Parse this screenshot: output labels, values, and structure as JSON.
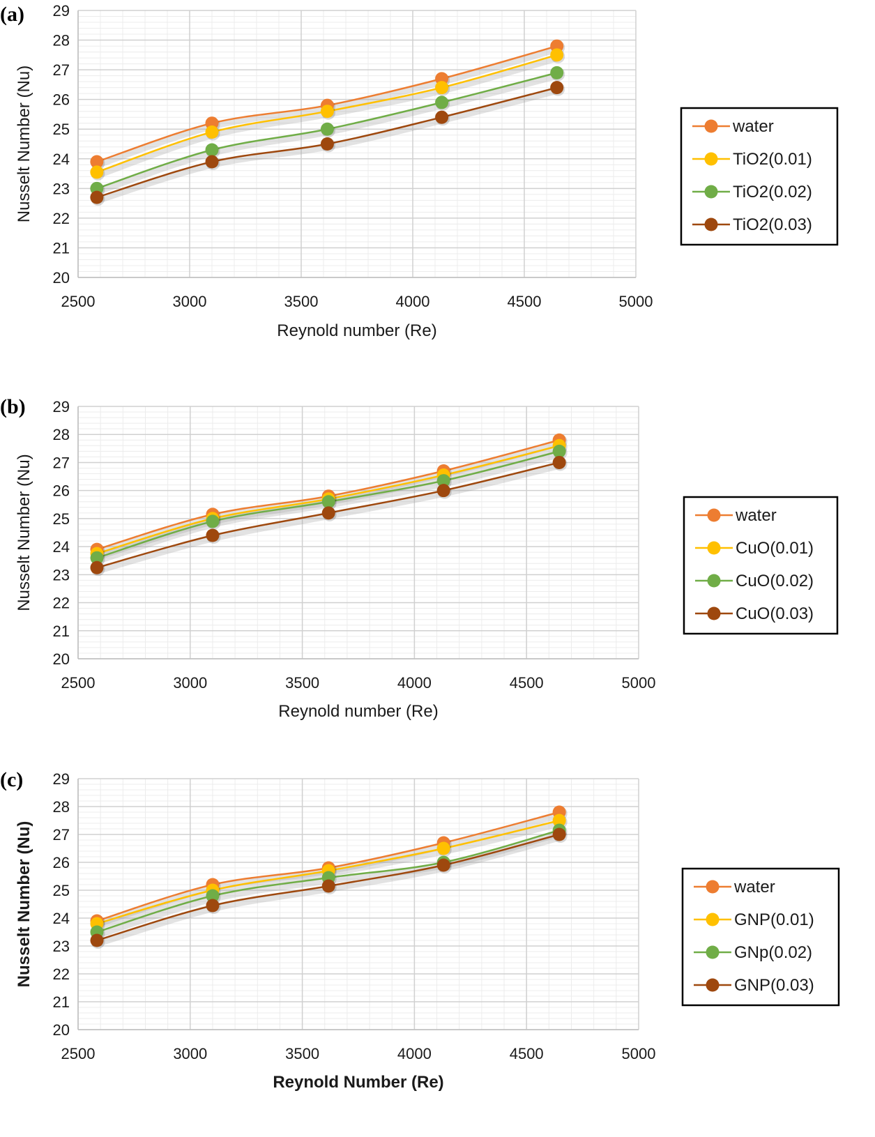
{
  "chart_data": [
    {
      "type": "line",
      "panel_label": "(a)",
      "xlabel": "Reynold number (Re)",
      "ylabel": "Nusselt Number (Nu)",
      "xlim": [
        2500,
        5000
      ],
      "ylim": [
        20,
        29
      ],
      "x_ticks": [
        2500,
        3000,
        3500,
        4000,
        4500,
        5000
      ],
      "y_ticks": [
        20,
        21,
        22,
        23,
        24,
        25,
        26,
        27,
        28,
        29
      ],
      "grid": true,
      "legend_position": "right",
      "x": [
        2584,
        3100,
        3617,
        4130,
        4646
      ],
      "series": [
        {
          "name": "water",
          "color": "#ED7D31",
          "values": [
            23.9,
            25.2,
            25.8,
            26.7,
            27.8
          ]
        },
        {
          "name": "TiO2(0.01)",
          "color": "#FFC000",
          "values": [
            23.55,
            24.9,
            25.6,
            26.4,
            27.5
          ]
        },
        {
          "name": "TiO2(0.02)",
          "color": "#70AD47",
          "values": [
            23.0,
            24.3,
            25.0,
            25.9,
            26.9
          ]
        },
        {
          "name": "TiO2(0.03)",
          "color": "#9E480E",
          "values": [
            22.7,
            23.9,
            24.5,
            25.4,
            26.4
          ]
        }
      ]
    },
    {
      "type": "line",
      "panel_label": "(b)",
      "xlabel": "Reynold number (Re)",
      "ylabel": "Nusselt Number (Nu)",
      "xlim": [
        2500,
        5000
      ],
      "ylim": [
        20,
        29
      ],
      "x_ticks": [
        2500,
        3000,
        3500,
        4000,
        4500,
        5000
      ],
      "y_ticks": [
        20,
        21,
        22,
        23,
        24,
        25,
        26,
        27,
        28,
        29
      ],
      "grid": true,
      "legend_position": "right",
      "x": [
        2584,
        3100,
        3617,
        4130,
        4646
      ],
      "series": [
        {
          "name": "water",
          "color": "#ED7D31",
          "values": [
            23.9,
            25.15,
            25.8,
            26.7,
            27.8
          ]
        },
        {
          "name": "CuO(0.01)",
          "color": "#FFC000",
          "values": [
            23.75,
            25.0,
            25.7,
            26.55,
            27.6
          ]
        },
        {
          "name": "CuO(0.02)",
          "color": "#70AD47",
          "values": [
            23.6,
            24.9,
            25.6,
            26.35,
            27.4
          ]
        },
        {
          "name": "CuO(0.03)",
          "color": "#9E480E",
          "values": [
            23.25,
            24.4,
            25.2,
            26.0,
            27.0
          ]
        }
      ]
    },
    {
      "type": "line",
      "panel_label": "(c)",
      "xlabel": "Reynold Number (Re)",
      "ylabel": "Nusselt Number (Nu)",
      "xlim": [
        2500,
        5000
      ],
      "ylim": [
        20,
        29
      ],
      "x_ticks": [
        2500,
        3000,
        3500,
        4000,
        4500,
        5000
      ],
      "y_ticks": [
        20,
        21,
        22,
        23,
        24,
        25,
        26,
        27,
        28,
        29
      ],
      "grid": true,
      "legend_position": "right",
      "x": [
        2584,
        3100,
        3617,
        4130,
        4646
      ],
      "series": [
        {
          "name": "water",
          "color": "#ED7D31",
          "values": [
            23.9,
            25.2,
            25.8,
            26.7,
            27.8
          ]
        },
        {
          "name": "GNP(0.01)",
          "color": "#FFC000",
          "values": [
            23.8,
            25.0,
            25.7,
            26.5,
            27.5
          ]
        },
        {
          "name": "GNp(0.02)",
          "color": "#70AD47",
          "values": [
            23.5,
            24.8,
            25.45,
            26.0,
            27.15
          ]
        },
        {
          "name": "GNP(0.03)",
          "color": "#9E480E",
          "values": [
            23.2,
            24.45,
            25.15,
            25.9,
            27.0
          ]
        }
      ]
    }
  ]
}
